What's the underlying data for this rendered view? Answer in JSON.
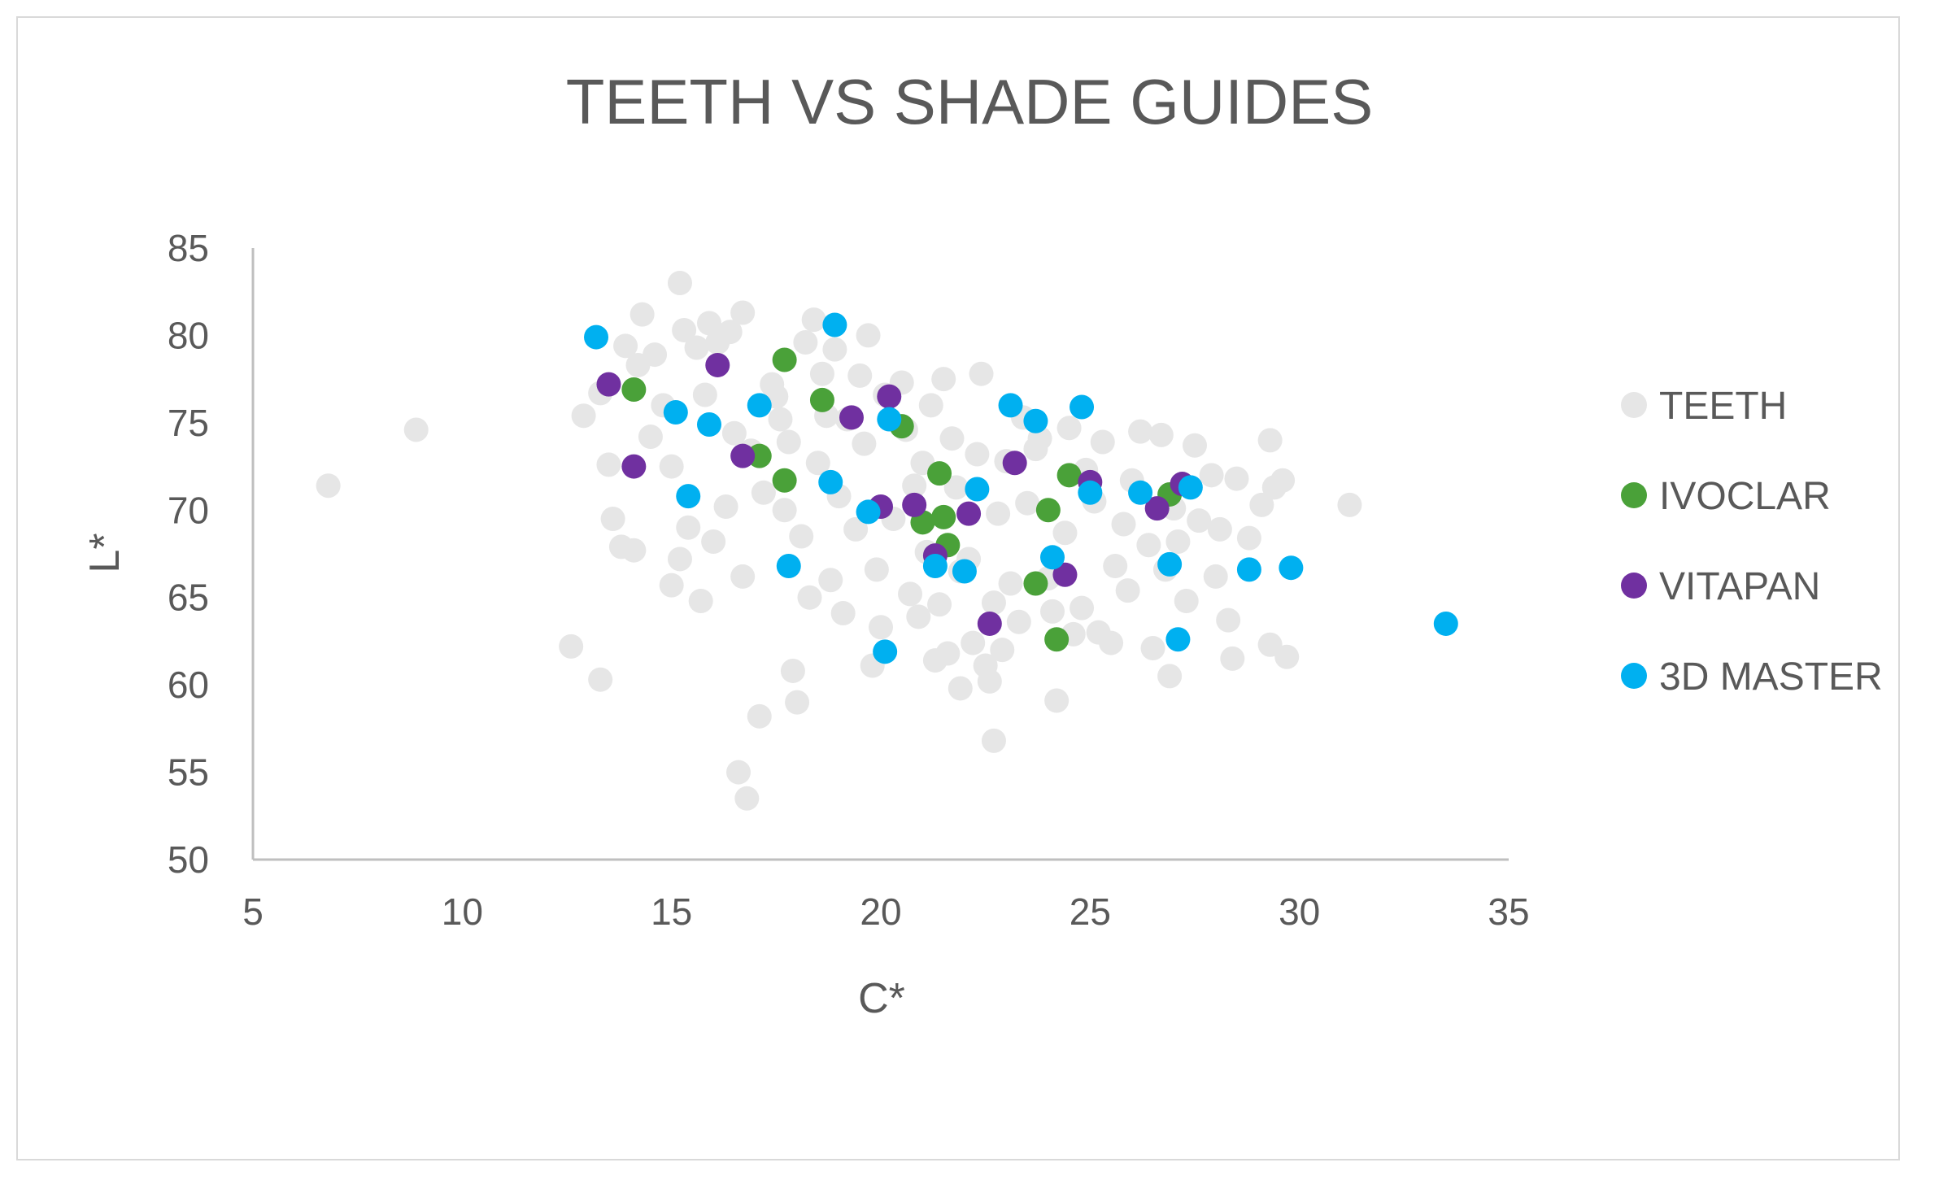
{
  "chart_data": {
    "type": "scatter",
    "title": "TEETH VS SHADE GUIDES",
    "xlabel": "C*",
    "ylabel": "L*",
    "xlim": [
      5,
      35
    ],
    "ylim": [
      50,
      85
    ],
    "xticks": [
      "5",
      "10",
      "15",
      "20",
      "25",
      "30",
      "35"
    ],
    "yticks": [
      "50",
      "55",
      "60",
      "65",
      "70",
      "75",
      "80",
      "85"
    ],
    "grid": false,
    "legend_position": "right",
    "series": [
      {
        "name": "TEETH",
        "color": "#e6e6e6",
        "points": [
          [
            6.8,
            71.4
          ],
          [
            8.9,
            74.6
          ],
          [
            12.6,
            62.2
          ],
          [
            13.3,
            60.3
          ],
          [
            12.9,
            75.4
          ],
          [
            13.3,
            76.7
          ],
          [
            13.5,
            72.6
          ],
          [
            13.6,
            69.5
          ],
          [
            13.8,
            67.9
          ],
          [
            14.1,
            67.7
          ],
          [
            14.3,
            81.2
          ],
          [
            14.6,
            78.9
          ],
          [
            15.0,
            65.7
          ],
          [
            15.2,
            67.2
          ],
          [
            15.2,
            83.0
          ],
          [
            15.3,
            80.3
          ],
          [
            15.6,
            79.3
          ],
          [
            15.7,
            64.8
          ],
          [
            15.9,
            80.7
          ],
          [
            16.1,
            79.6
          ],
          [
            16.4,
            80.2
          ],
          [
            16.7,
            81.3
          ],
          [
            16.7,
            66.2
          ],
          [
            16.6,
            55.0
          ],
          [
            16.8,
            53.5
          ],
          [
            17.1,
            58.2
          ],
          [
            17.4,
            77.2
          ],
          [
            17.6,
            75.2
          ],
          [
            17.9,
            60.8
          ],
          [
            18.0,
            59.0
          ],
          [
            18.2,
            79.6
          ],
          [
            18.4,
            80.9
          ],
          [
            18.6,
            77.8
          ],
          [
            18.9,
            79.2
          ],
          [
            19.2,
            75.2
          ],
          [
            19.7,
            80.0
          ],
          [
            19.8,
            61.1
          ],
          [
            19.6,
            73.8
          ],
          [
            20.1,
            76.6
          ],
          [
            20.5,
            77.3
          ],
          [
            20.8,
            71.4
          ],
          [
            21.1,
            67.6
          ],
          [
            21.5,
            77.5
          ],
          [
            21.3,
            61.4
          ],
          [
            21.6,
            61.8
          ],
          [
            21.9,
            59.8
          ],
          [
            22.2,
            62.4
          ],
          [
            22.4,
            77.8
          ],
          [
            22.5,
            61.1
          ],
          [
            22.6,
            60.2
          ],
          [
            22.7,
            56.8
          ],
          [
            22.9,
            62.0
          ],
          [
            23.4,
            75.3
          ],
          [
            23.8,
            74.1
          ],
          [
            24.2,
            59.1
          ],
          [
            24.6,
            62.9
          ],
          [
            24.9,
            72.3
          ],
          [
            25.3,
            73.9
          ],
          [
            25.5,
            62.4
          ],
          [
            25.9,
            65.4
          ],
          [
            26.2,
            74.5
          ],
          [
            26.5,
            62.1
          ],
          [
            26.7,
            74.3
          ],
          [
            26.9,
            60.5
          ],
          [
            27.1,
            68.2
          ],
          [
            27.3,
            64.8
          ],
          [
            27.5,
            73.7
          ],
          [
            27.9,
            72.0
          ],
          [
            28.0,
            66.2
          ],
          [
            28.3,
            63.7
          ],
          [
            28.4,
            61.5
          ],
          [
            28.5,
            71.8
          ],
          [
            28.8,
            68.4
          ],
          [
            29.1,
            70.3
          ],
          [
            29.3,
            74.0
          ],
          [
            29.4,
            71.3
          ],
          [
            29.3,
            62.3
          ],
          [
            29.7,
            61.6
          ],
          [
            31.2,
            70.3
          ],
          [
            29.6,
            71.7
          ],
          [
            14.5,
            74.2
          ],
          [
            15.0,
            72.5
          ],
          [
            15.8,
            76.6
          ],
          [
            16.3,
            70.2
          ],
          [
            16.9,
            73.4
          ],
          [
            17.2,
            71.0
          ],
          [
            17.7,
            70.0
          ],
          [
            18.1,
            68.5
          ],
          [
            18.5,
            72.7
          ],
          [
            18.8,
            66.0
          ],
          [
            19.0,
            70.8
          ],
          [
            19.4,
            68.9
          ],
          [
            19.9,
            66.6
          ],
          [
            20.3,
            69.5
          ],
          [
            20.7,
            65.2
          ],
          [
            21.0,
            72.7
          ],
          [
            21.4,
            64.6
          ],
          [
            21.8,
            71.3
          ],
          [
            22.1,
            67.2
          ],
          [
            22.8,
            69.8
          ],
          [
            23.1,
            65.8
          ],
          [
            23.5,
            70.4
          ],
          [
            24.0,
            66.1
          ],
          [
            24.4,
            68.7
          ],
          [
            24.8,
            64.4
          ],
          [
            25.1,
            70.5
          ],
          [
            25.6,
            66.8
          ],
          [
            26.0,
            71.7
          ],
          [
            26.4,
            68.0
          ],
          [
            27.0,
            70.1
          ],
          [
            17.5,
            76.5
          ],
          [
            18.7,
            75.4
          ],
          [
            19.5,
            77.7
          ],
          [
            20.6,
            74.6
          ],
          [
            21.2,
            76.0
          ],
          [
            21.7,
            74.1
          ],
          [
            22.3,
            73.2
          ],
          [
            23.0,
            72.8
          ],
          [
            23.7,
            73.5
          ],
          [
            24.5,
            74.7
          ],
          [
            16.0,
            68.2
          ],
          [
            16.5,
            74.4
          ],
          [
            17.8,
            73.9
          ],
          [
            18.3,
            65.0
          ],
          [
            19.1,
            64.1
          ],
          [
            20.0,
            63.3
          ],
          [
            20.9,
            63.9
          ],
          [
            21.9,
            66.5
          ],
          [
            22.7,
            64.7
          ],
          [
            23.3,
            63.6
          ],
          [
            24.1,
            64.2
          ],
          [
            25.2,
            63.0
          ],
          [
            25.8,
            69.2
          ],
          [
            26.8,
            66.6
          ],
          [
            27.6,
            69.4
          ],
          [
            28.1,
            68.9
          ],
          [
            15.4,
            69.0
          ],
          [
            14.8,
            76.0
          ],
          [
            13.9,
            79.4
          ],
          [
            14.2,
            78.3
          ]
        ]
      },
      {
        "name": "IVOCLAR",
        "color": "#4aa139",
        "points": [
          [
            14.1,
            76.9
          ],
          [
            17.7,
            78.6
          ],
          [
            18.6,
            76.3
          ],
          [
            20.5,
            74.8
          ],
          [
            17.1,
            73.1
          ],
          [
            17.7,
            71.7
          ],
          [
            21.4,
            72.1
          ],
          [
            24.5,
            72.0
          ],
          [
            21.0,
            69.3
          ],
          [
            21.5,
            69.6
          ],
          [
            24.0,
            70.0
          ],
          [
            26.9,
            70.9
          ],
          [
            21.6,
            68.0
          ],
          [
            23.7,
            65.8
          ],
          [
            24.2,
            62.6
          ]
        ]
      },
      {
        "name": "VITAPAN",
        "color": "#7030a0",
        "points": [
          [
            13.5,
            77.2
          ],
          [
            16.1,
            78.3
          ],
          [
            19.3,
            75.3
          ],
          [
            20.2,
            76.5
          ],
          [
            14.1,
            72.5
          ],
          [
            16.7,
            73.1
          ],
          [
            23.2,
            72.7
          ],
          [
            25.0,
            71.6
          ],
          [
            27.2,
            71.5
          ],
          [
            20.0,
            70.2
          ],
          [
            20.8,
            70.3
          ],
          [
            22.1,
            69.8
          ],
          [
            26.6,
            70.1
          ],
          [
            21.3,
            67.4
          ],
          [
            24.4,
            66.3
          ],
          [
            22.6,
            63.5
          ]
        ]
      },
      {
        "name": "3D MASTER",
        "color": "#00b0f0",
        "points": [
          [
            13.2,
            79.9
          ],
          [
            18.9,
            80.6
          ],
          [
            15.1,
            75.6
          ],
          [
            15.9,
            74.9
          ],
          [
            17.1,
            76.0
          ],
          [
            20.2,
            75.2
          ],
          [
            23.1,
            76.0
          ],
          [
            23.7,
            75.1
          ],
          [
            24.8,
            75.9
          ],
          [
            15.4,
            70.8
          ],
          [
            18.8,
            71.6
          ],
          [
            19.7,
            69.9
          ],
          [
            22.3,
            71.2
          ],
          [
            25.0,
            71.0
          ],
          [
            26.2,
            71.0
          ],
          [
            27.4,
            71.3
          ],
          [
            17.8,
            66.8
          ],
          [
            21.3,
            66.8
          ],
          [
            22.0,
            66.5
          ],
          [
            24.1,
            67.3
          ],
          [
            26.9,
            66.9
          ],
          [
            28.8,
            66.6
          ],
          [
            29.8,
            66.7
          ],
          [
            20.1,
            61.9
          ],
          [
            27.1,
            62.6
          ],
          [
            33.5,
            63.5
          ]
        ]
      }
    ]
  }
}
